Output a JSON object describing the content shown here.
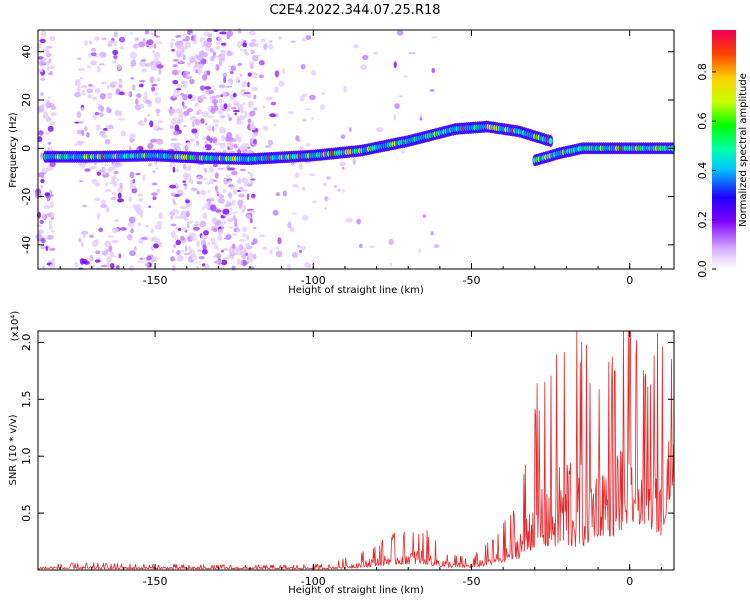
{
  "title": "C2E4.2022.344.07.25.R18",
  "chart_data": [
    {
      "type": "heatmap",
      "name": "spectrogram",
      "xlabel": "Height of straight line (km)",
      "ylabel": "Frequency (Hz)",
      "xlim": [
        -187,
        14
      ],
      "ylim": [
        -50,
        49
      ],
      "xticks": [
        -150,
        -100,
        -50,
        0
      ],
      "yticks": [
        -40,
        -20,
        0,
        20,
        40
      ],
      "colorbar": {
        "label": "Normalized spectral amplitude",
        "range": [
          0,
          0.97
        ],
        "ticks": [
          0.0,
          0.2,
          0.4,
          0.6,
          0.8
        ]
      },
      "ridge": [
        {
          "x": -185,
          "y": -3.5
        },
        {
          "x": -170,
          "y": -3.5
        },
        {
          "x": -150,
          "y": -3
        },
        {
          "x": -135,
          "y": -4
        },
        {
          "x": -120,
          "y": -4.5
        },
        {
          "x": -100,
          "y": -3
        },
        {
          "x": -85,
          "y": -1
        },
        {
          "x": -70,
          "y": 3
        },
        {
          "x": -55,
          "y": 8
        },
        {
          "x": -45,
          "y": 9
        },
        {
          "x": -35,
          "y": 7
        },
        {
          "x": -25,
          "y": 3
        },
        {
          "x": -30,
          "y": -5
        },
        {
          "x": -22,
          "y": -2
        },
        {
          "x": -15,
          "y": 0
        },
        {
          "x": 0,
          "y": 0
        },
        {
          "x": 14,
          "y": 0
        }
      ]
    },
    {
      "type": "line",
      "name": "snr",
      "xlabel": "Height of straight line (km)",
      "ylabel": "SNR (10 * v/v)",
      "yscale_label": "(x10⁴)",
      "xlim": [
        -187,
        14
      ],
      "ylim": [
        0,
        2.1
      ],
      "xticks": [
        -150,
        -100,
        -50,
        0
      ],
      "yticks": [
        0.5,
        1.0,
        1.5,
        2.0
      ],
      "ytick_labels": [
        "0.5",
        "1.0",
        "1.5",
        "2.0"
      ],
      "color": "#e8282b",
      "envelope": [
        {
          "x": -187,
          "lo": 0.01,
          "hi": 0.05
        },
        {
          "x": -170,
          "lo": 0.01,
          "hi": 0.06
        },
        {
          "x": -150,
          "lo": 0.01,
          "hi": 0.05
        },
        {
          "x": -120,
          "lo": 0.01,
          "hi": 0.04
        },
        {
          "x": -95,
          "lo": 0.01,
          "hi": 0.05
        },
        {
          "x": -85,
          "lo": 0.02,
          "hi": 0.15
        },
        {
          "x": -75,
          "lo": 0.05,
          "hi": 0.3
        },
        {
          "x": -65,
          "lo": 0.05,
          "hi": 0.35
        },
        {
          "x": -58,
          "lo": 0.02,
          "hi": 0.15
        },
        {
          "x": -50,
          "lo": 0.02,
          "hi": 0.1
        },
        {
          "x": -42,
          "lo": 0.05,
          "hi": 0.3
        },
        {
          "x": -35,
          "lo": 0.1,
          "hi": 0.6
        },
        {
          "x": -30,
          "lo": 0.2,
          "hi": 1.5
        },
        {
          "x": -25,
          "lo": 0.2,
          "hi": 1.6
        },
        {
          "x": -20,
          "lo": 0.2,
          "hi": 2.1
        },
        {
          "x": -15,
          "lo": 0.2,
          "hi": 1.9
        },
        {
          "x": -10,
          "lo": 0.3,
          "hi": 1.7
        },
        {
          "x": -5,
          "lo": 0.3,
          "hi": 1.9
        },
        {
          "x": 0,
          "lo": 0.4,
          "hi": 2.1
        },
        {
          "x": 5,
          "lo": 0.4,
          "hi": 1.6
        },
        {
          "x": 10,
          "lo": 0.3,
          "hi": 2.1
        },
        {
          "x": 14,
          "lo": 0.8,
          "hi": 1.7
        }
      ]
    }
  ]
}
